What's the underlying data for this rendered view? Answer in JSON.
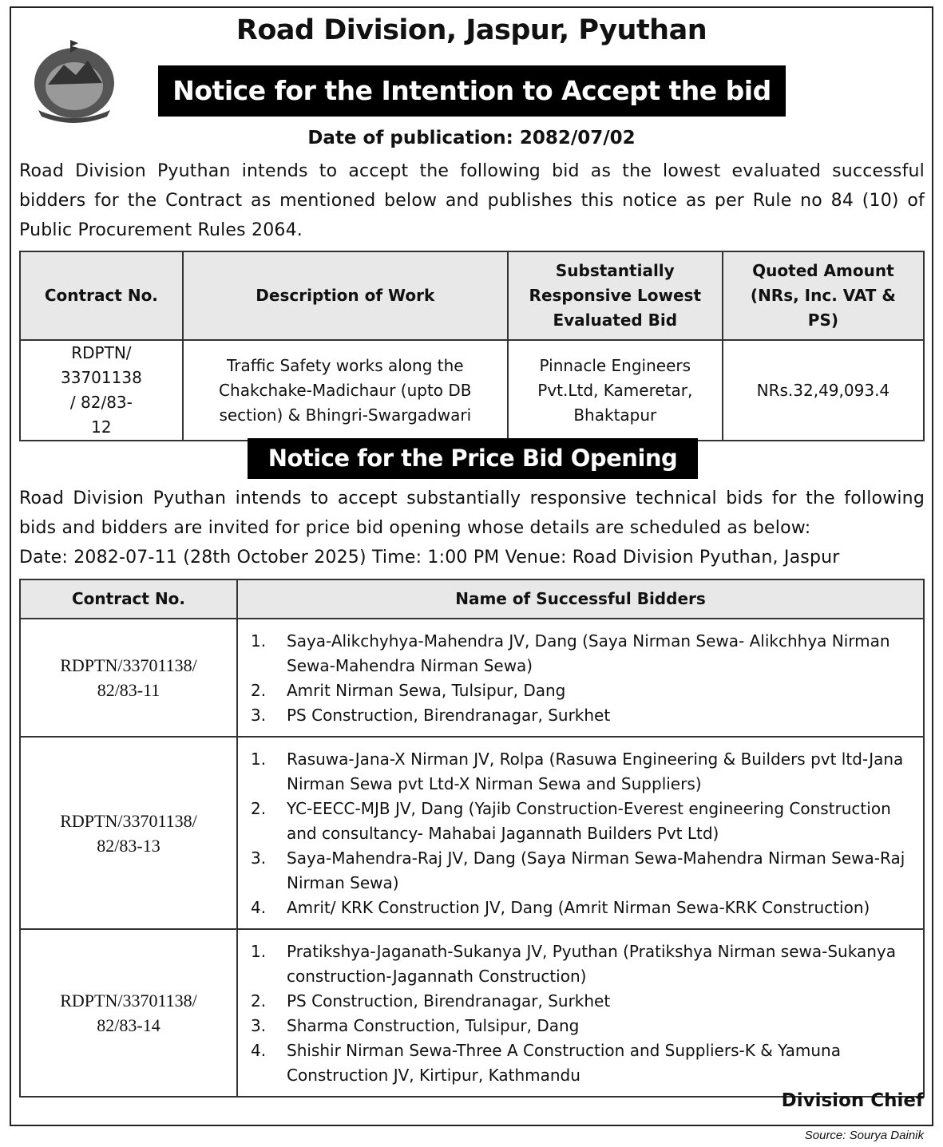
{
  "header": {
    "title": "Road Division, Jaspur, Pyuthan",
    "banner1": "Notice for the Intention to Accept the bid",
    "pub_date": "Date of publication: 2082/07/02",
    "para1": "Road Division Pyuthan intends to accept the following bid as the lowest evaluated successful bidders for the Contract as mentioned below and publishes this notice as per Rule no 84 (10) of Public Procurement Rules 2064."
  },
  "table1": {
    "headers": [
      "Contract No.",
      "Description of Work",
      "Substantially Responsive Lowest Evaluated Bid",
      "Quoted Amount (NRs, Inc. VAT & PS)"
    ],
    "row": [
      "RDPTN/ 33701138 / 82/83-12",
      "Traffic Safety works along the Chakchake-Madichaur (upto DB section) & Bhingri-Swargadwari",
      "Pinnacle Engineers Pvt.Ltd, Kameretar, Bhaktapur",
      "NRs.32,49,093.4"
    ]
  },
  "section2": {
    "banner": "Notice for the Price Bid Opening",
    "para": "Road Division Pyuthan intends to accept substantially responsive technical bids for the following bids and bidders are invited for price bid opening whose details are scheduled as below:",
    "schedule": "Date: 2082-07-11 (28th October 2025) Time: 1:00 PM Venue: Road Division Pyuthan, Jaspur"
  },
  "table2": {
    "headers": [
      "Contract No.",
      "Name of Successful Bidders"
    ],
    "rows": [
      {
        "contract": "RDPTN/33701138/ 82/83-11",
        "bidders": [
          {
            "n": "1.",
            "t": "Saya-Alikchyhya-Mahendra JV, Dang (Saya Nirman Sewa- Alikchhya Nirman Sewa-Mahendra Nirman Sewa)"
          },
          {
            "n": "2.",
            "t": "Amrit Nirman Sewa, Tulsipur, Dang"
          },
          {
            "n": "3.",
            "t": "PS Construction, Birendranagar, Surkhet"
          }
        ]
      },
      {
        "contract": "RDPTN/33701138/ 82/83-13",
        "bidders": [
          {
            "n": "1.",
            "t": "Rasuwa-Jana-X Nirman JV, Rolpa (Rasuwa Engineering & Builders pvt ltd-Jana Nirman Sewa pvt Ltd-X Nirman Sewa and Suppliers)"
          },
          {
            "n": "2.",
            "t": "YC-EECC-MJB JV, Dang (Yajib Construction-Everest engineering Construction and consultancy- Mahabai Jagannath Builders Pvt Ltd)"
          },
          {
            "n": "3.",
            "t": "Saya-Mahendra-Raj JV, Dang (Saya Nirman Sewa-Mahendra Nirman Sewa-Raj Nirman Sewa)"
          },
          {
            "n": "4.",
            "t": "Amrit/ KRK Construction JV, Dang (Amrit Nirman Sewa-KRK Construction)"
          }
        ]
      },
      {
        "contract": "RDPTN/33701138/ 82/83-14",
        "bidders": [
          {
            "n": "1.",
            "t": "Pratikshya-Jaganath-Sukanya JV, Pyuthan (Pratikshya Nirman sewa-Sukanya construction-Jagannath Construction)"
          },
          {
            "n": "2.",
            "t": "PS Construction, Birendranagar, Surkhet"
          },
          {
            "n": "3.",
            "t": "Sharma Construction, Tulsipur, Dang"
          },
          {
            "n": "4.",
            "t": "Shishir Nirman Sewa-Three A Construction and Suppliers-K & Yamuna Construction JV, Kirtipur, Kathmandu"
          }
        ]
      }
    ]
  },
  "footer": {
    "signatory": "Division Chief",
    "source": "Source: Sourya Dainik"
  }
}
